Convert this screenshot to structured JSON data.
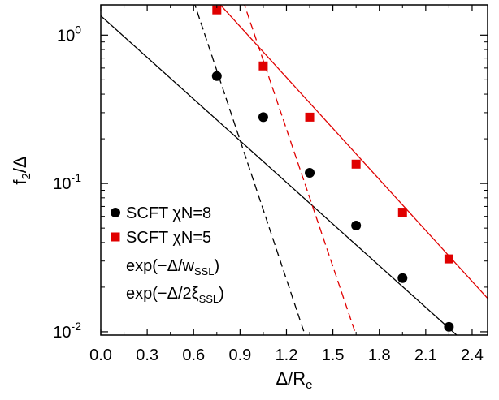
{
  "chart_data": {
    "type": "scatter",
    "x_axis": {
      "label_main": "Δ/R",
      "label_sub": "e",
      "range": [
        0,
        2.5
      ],
      "ticks": [
        0.0,
        0.3,
        0.6,
        0.9,
        1.2,
        1.5,
        1.8,
        2.1,
        2.4
      ],
      "tick_labels": [
        "0.0",
        "0.3",
        "0.6",
        "0.9",
        "1.2",
        "1.5",
        "1.8",
        "2.1",
        "2.4"
      ]
    },
    "y_axis": {
      "label_main": "f",
      "label_sub": "2",
      "label_end": "/Δ",
      "scale": "log",
      "range": [
        0.0095,
        1.6
      ],
      "ticks": [
        {
          "value": 1,
          "base": "10",
          "exp": "0"
        },
        {
          "value": 0.1,
          "base": "10",
          "exp": "-1"
        },
        {
          "value": 0.01,
          "base": "10",
          "exp": "-2"
        }
      ]
    },
    "grid": false,
    "legend_position": "bottom-left",
    "series": [
      {
        "name": "SCFT χN=8",
        "marker": "circle",
        "color": "#000000",
        "x": [
          0.75,
          1.05,
          1.35,
          1.65,
          1.95,
          2.25
        ],
        "y": [
          0.53,
          0.28,
          0.118,
          0.052,
          0.023,
          0.0108
        ]
      },
      {
        "name": "SCFT χN=5",
        "marker": "square",
        "color": "#e00000",
        "x": [
          0.75,
          1.05,
          1.35,
          1.65,
          1.95,
          2.25
        ],
        "y": [
          1.48,
          0.62,
          0.28,
          0.135,
          0.064,
          0.031
        ]
      }
    ],
    "lines": [
      {
        "style": "solid",
        "color": "#000000",
        "x": [
          0.0,
          2.3
        ],
        "y": [
          1.35,
          0.0095
        ]
      },
      {
        "style": "solid",
        "color": "#e00000",
        "x": [
          0.75,
          2.5
        ],
        "y": [
          1.7,
          0.0168
        ]
      },
      {
        "style": "dashed",
        "color": "#000000",
        "x": [
          0.6,
          1.32
        ],
        "y": [
          1.7,
          0.0095
        ]
      },
      {
        "style": "dashed",
        "color": "#e00000",
        "x": [
          0.92,
          1.65
        ],
        "y": [
          1.7,
          0.0095
        ]
      }
    ],
    "legend": [
      {
        "kind": "circle",
        "color": "#000000",
        "text": "SCFT χN=8"
      },
      {
        "kind": "square",
        "color": "#e00000",
        "text": "SCFT χN=5"
      },
      {
        "kind": "text",
        "text_main": "exp(−Δ/w",
        "text_sub": "SSL",
        "text_end": ")"
      },
      {
        "kind": "text",
        "text_main": "exp(−Δ/2ξ",
        "text_sub": "SSL",
        "text_end": ")"
      }
    ]
  }
}
